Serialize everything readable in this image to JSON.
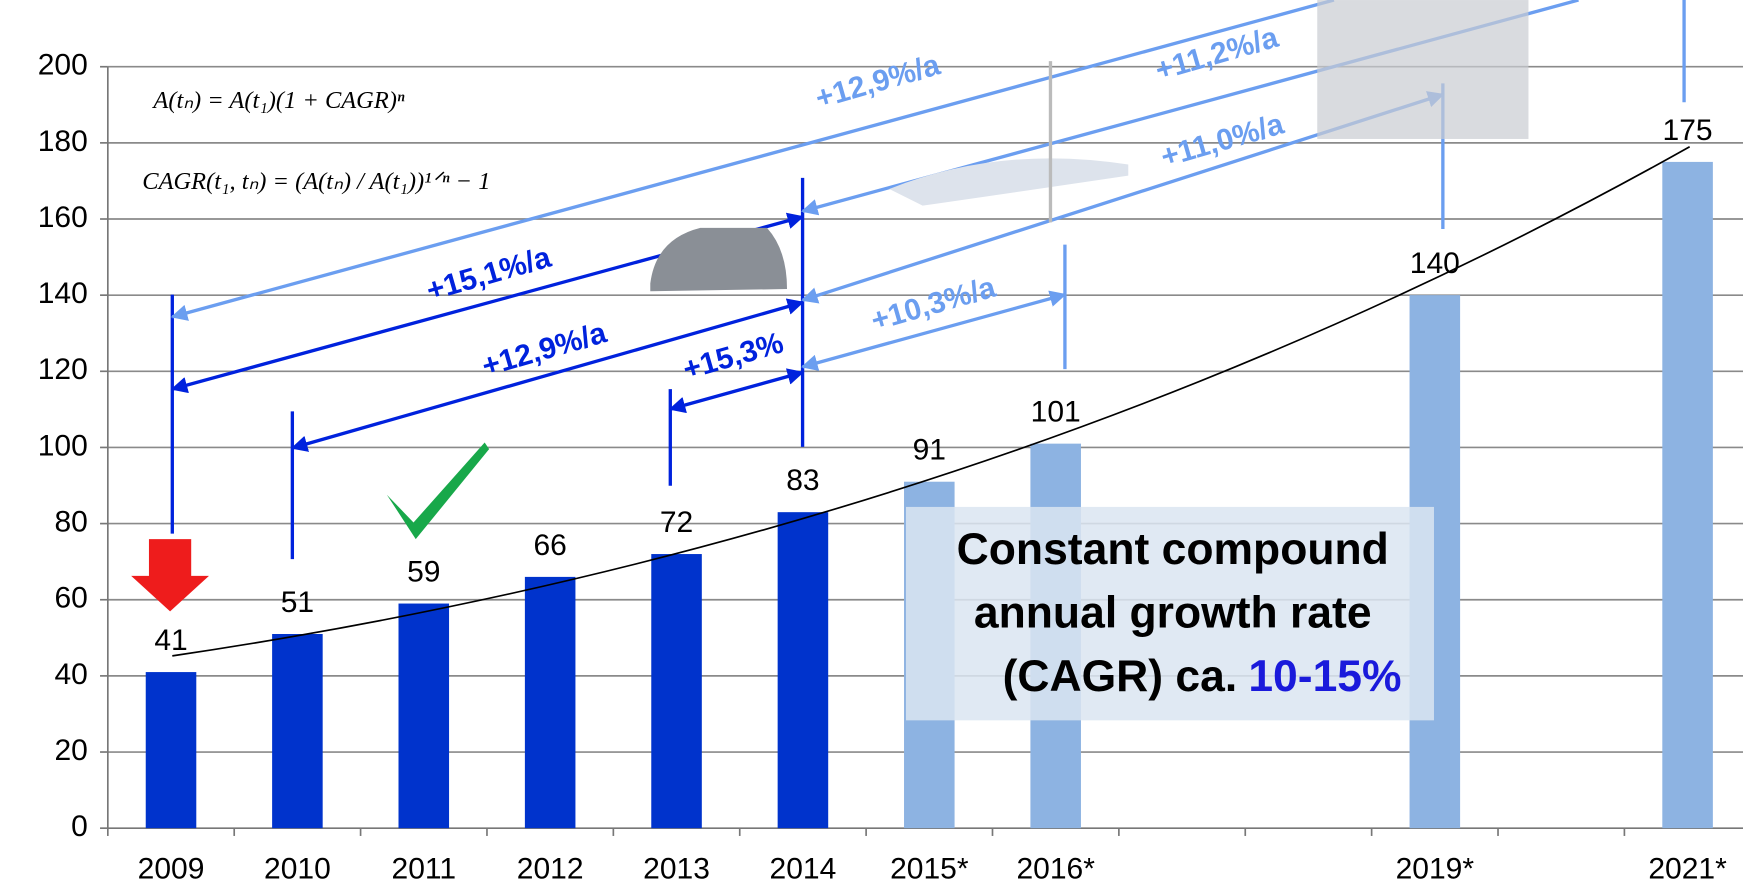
{
  "chart_data": {
    "type": "bar",
    "categories": [
      "2009",
      "2010",
      "2011",
      "2012",
      "2013",
      "2014",
      "2015*",
      "2016*",
      null,
      null,
      "2019*",
      null,
      "2021*"
    ],
    "values": [
      41,
      51,
      59,
      66,
      72,
      83,
      91,
      101,
      null,
      null,
      140,
      null,
      175
    ],
    "colors": [
      "#0033cc",
      "#0033cc",
      "#0033cc",
      "#0033cc",
      "#0033cc",
      "#0033cc",
      "#8db3e2",
      "#8db3e2",
      "#8db3e2",
      "#8db3e2",
      "#8db3e2",
      "#8db3e2",
      "#8db3e2"
    ],
    "ylim": [
      0,
      200
    ],
    "yticks": [
      0,
      20,
      40,
      60,
      80,
      100,
      120,
      140,
      160,
      180,
      200
    ],
    "grid": true,
    "annotations": [
      "+12,9%/a",
      "+11,2%/a",
      "+11,0%/a",
      "+10,3%/a",
      "+15,1%/a",
      "+12,9%/a",
      "+15,3%"
    ],
    "formulas": [
      "A(tₙ) = A(t₁)(1 + CAGR)ⁿ",
      "CAGR(t₁, tₙ) = (A(tₙ) / A(t₁))¹ᐟⁿ − 1"
    ],
    "note_lines": [
      "Constant compound",
      "annual growth rate",
      "(CAGR) ca."
    ],
    "note_highlight": "10-15%"
  }
}
